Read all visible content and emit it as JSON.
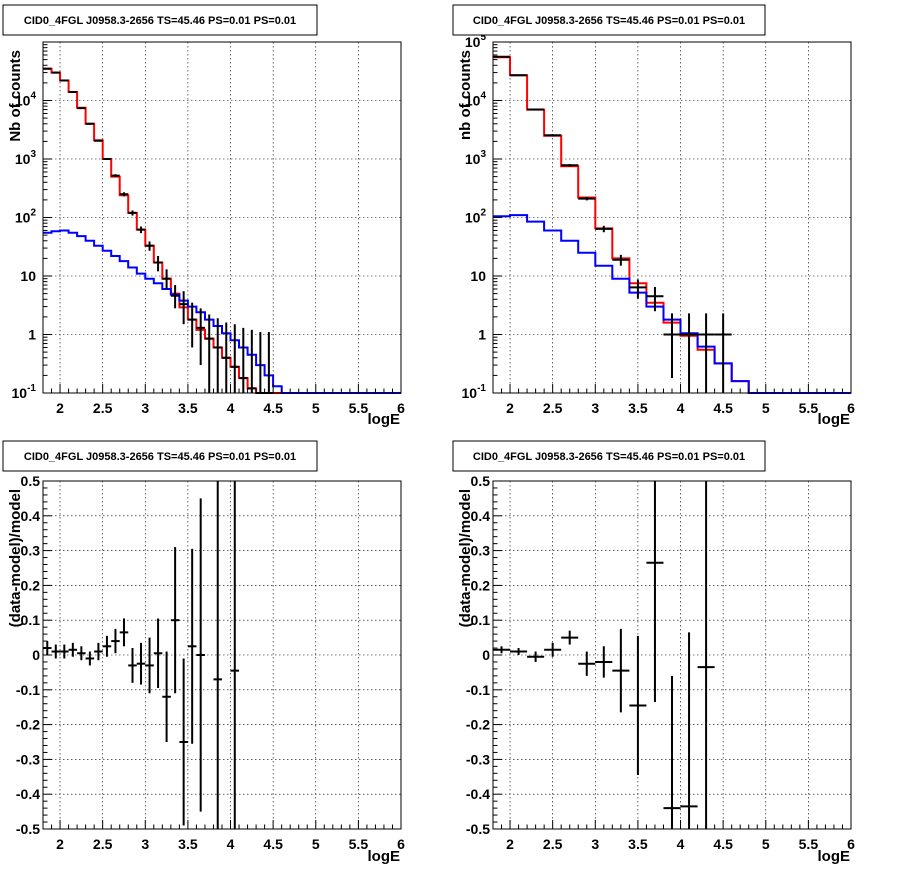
{
  "chart_data": [
    {
      "type": "line",
      "title": "CID0_4FGL J0958.3-2656 TS=45.46 PS=0.01 PS=0.01",
      "xlabel": "logE",
      "ylabel": "Nb of counts",
      "xlim": [
        1.8,
        6.0
      ],
      "ylim": [
        0.1,
        100000
      ],
      "yscale": "log",
      "grid": true,
      "x_ticks": [
        "2",
        "2.5",
        "3",
        "3.5",
        "4",
        "4.5",
        "5",
        "5.5",
        "6"
      ],
      "y_ticks": [
        "10^-1",
        "1",
        "10",
        "10^2",
        "10^3",
        "10^4"
      ],
      "series": [
        {
          "color": "#ff0000",
          "draw": "step",
          "edges": [
            1.8,
            1.9,
            2.0,
            2.1,
            2.2,
            2.3,
            2.4,
            2.5,
            2.6,
            2.7,
            2.8,
            2.9,
            3.0,
            3.1,
            3.2,
            3.3,
            3.4,
            3.5,
            3.6,
            3.7,
            3.8,
            3.9,
            4.0,
            4.1,
            4.2,
            4.3,
            4.4,
            4.5,
            4.6,
            4.7,
            4.8,
            4.9,
            5.0,
            5.1,
            5.2,
            5.3,
            5.4,
            5.5,
            5.6,
            5.7,
            5.8,
            5.9,
            6.0
          ],
          "values": [
            35000,
            30000,
            22000,
            14000,
            7500,
            4000,
            2100,
            1000,
            500,
            240,
            120,
            62,
            33,
            17,
            9,
            5,
            2.9,
            1.8,
            1.2,
            0.85,
            0.6,
            0.4,
            0.28,
            0.18,
            0.12,
            0.1,
            0.1,
            0.1,
            0.1,
            0.1,
            0.1,
            0.1,
            0.1,
            0.1,
            0.1,
            0.1,
            0.1,
            0.1,
            0.1,
            0.1,
            0.1,
            0.1
          ]
        },
        {
          "color": "#0000ff",
          "draw": "step",
          "edges": [
            1.8,
            1.9,
            2.0,
            2.1,
            2.2,
            2.3,
            2.4,
            2.5,
            2.6,
            2.7,
            2.8,
            2.9,
            3.0,
            3.1,
            3.2,
            3.3,
            3.4,
            3.5,
            3.6,
            3.7,
            3.8,
            3.9,
            4.0,
            4.1,
            4.2,
            4.3,
            4.4,
            4.5,
            4.6,
            4.7,
            4.8,
            4.9,
            5.0,
            5.1,
            5.2,
            5.3,
            5.4,
            5.5,
            5.6,
            5.7,
            5.8,
            5.9,
            6.0
          ],
          "values": [
            55,
            58,
            60,
            55,
            48,
            40,
            33,
            27,
            22,
            18,
            14,
            11,
            9,
            7.5,
            6,
            4.8,
            3.8,
            3,
            2.4,
            1.8,
            1.4,
            1.05,
            0.8,
            0.6,
            0.45,
            0.3,
            0.2,
            0.13,
            0.1,
            0.1,
            0.1,
            0.1,
            0.1,
            0.1,
            0.1,
            0.1,
            0.1,
            0.1,
            0.1,
            0.1,
            0.1,
            0.1
          ]
        },
        {
          "color": "#000000",
          "draw": "points",
          "x": [
            1.85,
            1.95,
            2.05,
            2.15,
            2.25,
            2.35,
            2.45,
            2.55,
            2.65,
            2.75,
            2.85,
            2.95,
            3.05,
            3.15,
            3.25,
            3.35,
            3.45,
            3.55,
            3.65,
            3.75,
            3.85,
            3.95,
            4.05,
            4.15,
            4.25,
            4.35,
            4.45
          ],
          "y": [
            35000,
            30000,
            22000,
            14000,
            7400,
            4000,
            2050,
            1000,
            520,
            250,
            120,
            62,
            33,
            17,
            9,
            4.6,
            3.3,
            1.8,
            1.3,
            0.85,
            0.6,
            0.4,
            0.28,
            0.18,
            0.12,
            0.1,
            0.1
          ],
          "ylo": [
            34000,
            29000,
            21500,
            13800,
            7200,
            3900,
            2000,
            960,
            490,
            230,
            108,
            54,
            27,
            12,
            6,
            2.8,
            1.5,
            0.6,
            0.3,
            0.1,
            0.1,
            0.1,
            0.1,
            0.1,
            0.1,
            0.1,
            0.1
          ],
          "yhi": [
            36000,
            31000,
            22500,
            14200,
            7600,
            4100,
            2100,
            1040,
            550,
            270,
            132,
            70,
            39,
            22,
            13,
            7,
            5.5,
            3.5,
            2.8,
            2.2,
            1.9,
            1.6,
            1.5,
            1.3,
            1.2,
            1.1,
            1.1
          ],
          "xerr": 0.05
        }
      ]
    },
    {
      "type": "line",
      "title": "CID0_4FGL J0958.3-2656 TS=45.46 PS=0.01 PS=0.01",
      "xlabel": "logE",
      "ylabel": "nb of counts",
      "xlim": [
        1.8,
        6.0
      ],
      "ylim": [
        0.1,
        100000
      ],
      "yscale": "log",
      "grid": true,
      "x_ticks": [
        "2",
        "2.5",
        "3",
        "3.5",
        "4",
        "4.5",
        "5",
        "5.5",
        "6"
      ],
      "y_ticks": [
        "10^-1",
        "1",
        "10",
        "10^2",
        "10^3",
        "10^4",
        "10^5"
      ],
      "series": [
        {
          "color": "#ff0000",
          "draw": "step",
          "edges": [
            1.8,
            2.0,
            2.2,
            2.4,
            2.6,
            2.8,
            3.0,
            3.2,
            3.4,
            3.6,
            3.8,
            4.0,
            4.2,
            4.4,
            4.6,
            4.8,
            5.0,
            5.2,
            5.4,
            5.6,
            5.8,
            6.0
          ],
          "values": [
            55000,
            27000,
            7000,
            2500,
            750,
            220,
            65,
            20,
            7.5,
            3.5,
            1.6,
            0.95,
            0.55,
            0.32,
            0.16,
            0.1,
            0.1,
            0.1,
            0.1,
            0.1,
            0.1
          ]
        },
        {
          "color": "#0000ff",
          "draw": "step",
          "edges": [
            1.8,
            2.0,
            2.2,
            2.4,
            2.6,
            2.8,
            3.0,
            3.2,
            3.4,
            3.6,
            3.8,
            4.0,
            4.2,
            4.4,
            4.6,
            4.8,
            5.0,
            5.2,
            5.4,
            5.6,
            5.8,
            6.0
          ],
          "values": [
            105,
            110,
            85,
            60,
            40,
            25,
            15,
            9,
            5.2,
            3,
            1.8,
            1.05,
            0.62,
            0.32,
            0.16,
            0.1,
            0.1,
            0.1,
            0.1,
            0.1,
            0.1
          ]
        },
        {
          "color": "#000000",
          "draw": "points",
          "x": [
            1.9,
            2.1,
            2.3,
            2.5,
            2.7,
            2.9,
            3.1,
            3.3,
            3.5,
            3.7,
            3.9,
            4.1,
            4.3,
            4.5
          ],
          "y": [
            56000,
            27000,
            7000,
            2550,
            780,
            210,
            64,
            19,
            6.4,
            4.5,
            1,
            1,
            1,
            1
          ],
          "ylo": [
            55000,
            26500,
            6900,
            2450,
            740,
            196,
            56,
            15,
            4.1,
            2.5,
            0.18,
            0.1,
            0.1,
            0.1
          ],
          "yhi": [
            57000,
            27500,
            7100,
            2650,
            820,
            224,
            72,
            23,
            8.7,
            6.5,
            2.3,
            2.3,
            2.3,
            2.3
          ],
          "xerr": 0.1
        }
      ]
    },
    {
      "type": "scatter",
      "title": "CID0_4FGL J0958.3-2656 TS=45.46 PS=0.01 PS=0.01",
      "xlabel": "logE",
      "ylabel": "(data-model)/model",
      "xlim": [
        1.8,
        6.0
      ],
      "ylim": [
        -0.5,
        0.5
      ],
      "grid": true,
      "x_ticks": [
        "2",
        "2.5",
        "3",
        "3.5",
        "4",
        "4.5",
        "5",
        "5.5",
        "6"
      ],
      "y_ticks": [
        "-0.5",
        "-0.4",
        "-0.3",
        "-0.2",
        "-0.1",
        "0",
        "0.1",
        "0.2",
        "0.3",
        "0.4",
        "0.5"
      ],
      "series": [
        {
          "color": "#000000",
          "x": [
            1.85,
            1.95,
            2.05,
            2.15,
            2.25,
            2.35,
            2.45,
            2.55,
            2.65,
            2.75,
            2.85,
            2.95,
            3.05,
            3.15,
            3.25,
            3.35,
            3.45,
            3.55,
            3.65,
            3.85,
            4.05
          ],
          "y": [
            0.02,
            0.01,
            0.01,
            0.015,
            0.005,
            -0.01,
            0.01,
            0.025,
            0.04,
            0.065,
            -0.03,
            -0.025,
            -0.03,
            0.005,
            -0.12,
            0.1,
            -0.25,
            0.025,
            0,
            -0.07,
            -0.045
          ],
          "yerr": [
            0.02,
            0.02,
            0.02,
            0.02,
            0.02,
            0.02,
            0.025,
            0.03,
            0.035,
            0.04,
            0.05,
            0.06,
            0.08,
            0.1,
            0.13,
            0.21,
            0.24,
            0.28,
            0.45,
            0.6,
            0.8
          ],
          "xerr": 0.05
        }
      ]
    },
    {
      "type": "scatter",
      "title": "CID0_4FGL J0958.3-2656 TS=45.46 PS=0.01 PS=0.01",
      "xlabel": "logE",
      "ylabel": "(data-model)/model",
      "xlim": [
        1.8,
        6.0
      ],
      "ylim": [
        -0.5,
        0.5
      ],
      "grid": true,
      "x_ticks": [
        "2",
        "2.5",
        "3",
        "3.5",
        "4",
        "4.5",
        "5",
        "5.5",
        "6"
      ],
      "y_ticks": [
        "-0.5",
        "-0.4",
        "-0.3",
        "-0.2",
        "-0.1",
        "0",
        "0.1",
        "0.2",
        "0.3",
        "0.4",
        "0.5"
      ],
      "series": [
        {
          "color": "#000000",
          "x": [
            1.9,
            2.1,
            2.3,
            2.5,
            2.7,
            2.9,
            3.1,
            3.3,
            3.5,
            3.7,
            3.9,
            4.1,
            4.3
          ],
          "y": [
            0.015,
            0.01,
            -0.005,
            0.015,
            0.05,
            -0.025,
            -0.02,
            -0.045,
            -0.145,
            0.265,
            -0.44,
            -0.435,
            -0.035
          ],
          "yerr": [
            0.01,
            0.01,
            0.015,
            0.02,
            0.02,
            0.035,
            0.045,
            0.12,
            0.2,
            0.4,
            0.38,
            0.5,
            0.6
          ],
          "xerr": 0.1
        }
      ]
    }
  ]
}
